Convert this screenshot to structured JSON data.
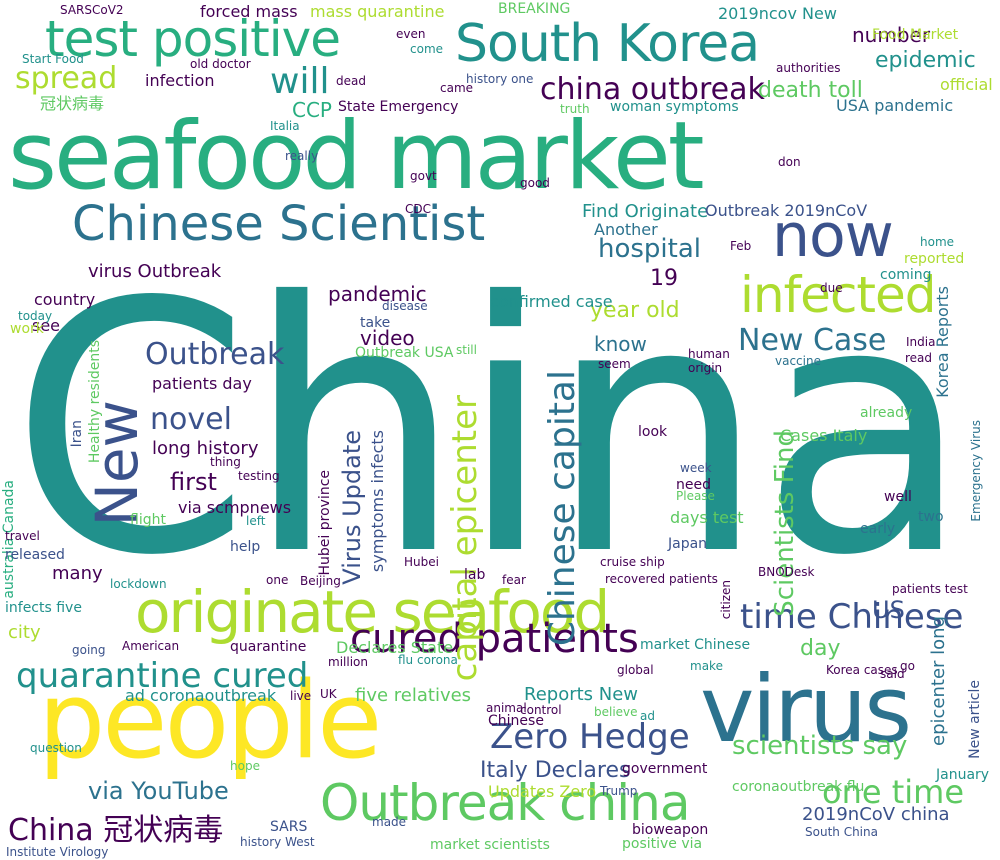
{
  "palette": {
    "dark_purple": "#440154",
    "indigo": "#3b528b",
    "blue": "#2c728e",
    "teal": "#21918c",
    "green": "#28ae80",
    "lime": "#5ec962",
    "yellow_green": "#addc30",
    "yellow": "#fde725"
  },
  "words": [
    {
      "text": "China",
      "color": "teal",
      "weight": 1
    },
    {
      "text": "seafood market",
      "color": "green",
      "weight": 2
    },
    {
      "text": "virus",
      "color": "blue",
      "weight": 3
    },
    {
      "text": "people",
      "color": "yellow",
      "weight": 3
    },
    {
      "text": "originate seafood",
      "color": "yellow_green",
      "weight": 4
    },
    {
      "text": "South Korea",
      "color": "teal",
      "weight": 4
    },
    {
      "text": "test positive",
      "color": "green",
      "weight": 4
    },
    {
      "text": "Outbreak china",
      "color": "lime",
      "weight": 4
    },
    {
      "text": "Chinese Scientist",
      "color": "blue",
      "weight": 4
    },
    {
      "text": "now",
      "color": "indigo",
      "weight": 4
    },
    {
      "text": "infected",
      "color": "yellow_green",
      "weight": 5
    },
    {
      "text": "cured patients",
      "color": "dark_purple",
      "weight": 5
    },
    {
      "text": "quarantine cured",
      "color": "teal",
      "weight": 5
    },
    {
      "text": "New",
      "color": "indigo",
      "weight": 5
    },
    {
      "text": "china outbreak",
      "color": "dark_purple",
      "weight": 5
    },
    {
      "text": "Zero Hedge",
      "color": "indigo",
      "weight": 5
    },
    {
      "text": "capital epicenter",
      "color": "yellow_green",
      "weight": 5
    },
    {
      "text": "Chinese capital",
      "color": "blue",
      "weight": 5
    },
    {
      "text": "time Chinese",
      "color": "indigo",
      "weight": 5
    },
    {
      "text": "one time",
      "color": "lime",
      "weight": 5
    },
    {
      "text": "China 冠状病毒",
      "color": "dark_purple",
      "weight": 5
    },
    {
      "text": "Find Originate",
      "color": "teal",
      "weight": 6
    },
    {
      "text": "will",
      "color": "teal",
      "weight": 6
    },
    {
      "text": "spread",
      "color": "yellow_green",
      "weight": 6
    },
    {
      "text": "epidemic",
      "color": "teal",
      "weight": 6
    },
    {
      "text": "death toll",
      "color": "lime",
      "weight": 6
    },
    {
      "text": "hospital",
      "color": "blue",
      "weight": 6
    },
    {
      "text": "Outbreak",
      "color": "indigo",
      "weight": 6
    },
    {
      "text": "novel",
      "color": "indigo",
      "weight": 6
    },
    {
      "text": "first",
      "color": "dark_purple",
      "weight": 6
    },
    {
      "text": "Virus Update",
      "color": "indigo",
      "weight": 6
    },
    {
      "text": "New Case",
      "color": "blue",
      "weight": 6
    },
    {
      "text": "Scientists Find",
      "color": "lime",
      "weight": 6
    },
    {
      "text": "scientists say",
      "color": "lime",
      "weight": 6
    },
    {
      "text": "Italy Declares",
      "color": "indigo",
      "weight": 6
    },
    {
      "text": "via YouTube",
      "color": "blue",
      "weight": 6
    },
    {
      "text": "Outbreak 2019nCoV",
      "color": "indigo",
      "weight": 7
    },
    {
      "text": "pandemic",
      "color": "dark_purple",
      "weight": 7
    },
    {
      "text": "video",
      "color": "dark_purple",
      "weight": 7
    },
    {
      "text": "know",
      "color": "blue",
      "weight": 7
    },
    {
      "text": "year old",
      "color": "yellow_green",
      "weight": 7
    },
    {
      "text": "number",
      "color": "dark_purple",
      "weight": 7
    },
    {
      "text": "CCP",
      "color": "green",
      "weight": 7
    },
    {
      "text": "State Emergency",
      "color": "dark_purple",
      "weight": 7
    },
    {
      "text": "long history",
      "color": "dark_purple",
      "weight": 7
    },
    {
      "text": "patients day",
      "color": "dark_purple",
      "weight": 7
    },
    {
      "text": "virus Outbreak",
      "color": "dark_purple",
      "weight": 7
    },
    {
      "text": "confirmed case",
      "color": "teal",
      "weight": 7
    },
    {
      "text": "Reports New",
      "color": "teal",
      "weight": 7
    },
    {
      "text": "five relatives",
      "color": "lime",
      "weight": 7
    },
    {
      "text": "ad coronaoutbreak",
      "color": "teal",
      "weight": 7
    },
    {
      "text": "Updates Zero",
      "color": "yellow_green",
      "weight": 7
    },
    {
      "text": "coronaoutbreak flu",
      "color": "lime",
      "weight": 7
    },
    {
      "text": "2019nCoV china",
      "color": "indigo",
      "weight": 7
    },
    {
      "text": "Another",
      "color": "blue",
      "weight": 7
    },
    {
      "text": "USA pandemic",
      "color": "blue",
      "weight": 7
    },
    {
      "text": "epicenter long",
      "color": "blue",
      "weight": 7
    },
    {
      "text": "Korea Reports",
      "color": "blue",
      "weight": 7
    },
    {
      "text": "Cases Italy",
      "color": "lime",
      "weight": 7
    },
    {
      "text": "days test",
      "color": "lime",
      "weight": 7
    },
    {
      "text": "Japan",
      "color": "indigo",
      "weight": 7
    },
    {
      "text": "Declares State",
      "color": "lime",
      "weight": 7
    },
    {
      "text": "via scmpnews",
      "color": "dark_purple",
      "weight": 7
    },
    {
      "text": "symptoms infects",
      "color": "indigo",
      "weight": 7
    },
    {
      "text": "Hubei province",
      "color": "dark_purple",
      "weight": 7
    },
    {
      "text": "Outbreak USA",
      "color": "lime",
      "weight": 7
    },
    {
      "text": "Chinese",
      "color": "dark_purple",
      "weight": 7
    },
    {
      "text": "government",
      "color": "dark_purple",
      "weight": 7
    },
    {
      "text": "Food Market",
      "color": "yellow_green",
      "weight": 7
    },
    {
      "text": "infection",
      "color": "dark_purple",
      "weight": 7
    },
    {
      "text": "forced mass",
      "color": "dark_purple",
      "weight": 7
    },
    {
      "text": "2019ncov New",
      "color": "teal",
      "weight": 7
    },
    {
      "text": "mass quarantine",
      "color": "yellow_green",
      "weight": 7
    },
    {
      "text": "SARSCoV2",
      "color": "dark_purple",
      "weight": 7
    },
    {
      "text": "woman symptoms",
      "color": "teal",
      "weight": 7
    },
    {
      "text": "US",
      "color": "indigo",
      "weight": 7
    },
    {
      "text": "day",
      "color": "lime",
      "weight": 7
    },
    {
      "text": "many",
      "color": "dark_purple",
      "weight": 7
    },
    {
      "text": "city",
      "color": "yellow_green",
      "weight": 7
    },
    {
      "text": "lab",
      "color": "dark_purple",
      "weight": 7
    },
    {
      "text": "19",
      "color": "dark_purple",
      "weight": 7
    },
    {
      "text": "see",
      "color": "dark_purple",
      "weight": 7
    },
    {
      "text": "country",
      "color": "dark_purple",
      "weight": 7
    },
    {
      "text": "Healthy residents",
      "color": "lime",
      "weight": 7
    },
    {
      "text": "australia Canada",
      "color": "green",
      "weight": 8
    },
    {
      "text": "Iran",
      "color": "indigo",
      "weight": 8
    },
    {
      "text": "recovered patients",
      "color": "dark_purple",
      "weight": 8
    },
    {
      "text": "history one",
      "color": "indigo",
      "weight": 8
    },
    {
      "text": "flight",
      "color": "lime",
      "weight": 8
    },
    {
      "text": "help",
      "color": "indigo",
      "weight": 8
    },
    {
      "text": "released",
      "color": "indigo",
      "weight": 8
    },
    {
      "text": "lockdown",
      "color": "teal",
      "weight": 8
    },
    {
      "text": "infects five",
      "color": "teal",
      "weight": 8
    },
    {
      "text": "quarantine",
      "color": "dark_purple",
      "weight": 8
    },
    {
      "text": "American",
      "color": "dark_purple",
      "weight": 8
    },
    {
      "text": "million",
      "color": "dark_purple",
      "weight": 8
    },
    {
      "text": "flu corona",
      "color": "teal",
      "weight": 8
    },
    {
      "text": "going",
      "color": "indigo",
      "weight": 8
    },
    {
      "text": "market Chinese",
      "color": "teal",
      "weight": 8
    },
    {
      "text": "global",
      "color": "dark_purple",
      "weight": 8
    },
    {
      "text": "make",
      "color": "teal",
      "weight": 8
    },
    {
      "text": "Trump",
      "color": "indigo",
      "weight": 8
    },
    {
      "text": "bioweapon",
      "color": "dark_purple",
      "weight": 8
    },
    {
      "text": "positive via",
      "color": "lime",
      "weight": 8
    },
    {
      "text": "market scientists",
      "color": "lime",
      "weight": 8
    },
    {
      "text": "SARS",
      "color": "indigo",
      "weight": 8
    },
    {
      "text": "history West",
      "color": "indigo",
      "weight": 8
    },
    {
      "text": "Institute Virology",
      "color": "indigo",
      "weight": 8
    },
    {
      "text": "South China",
      "color": "indigo",
      "weight": 8
    },
    {
      "text": "January",
      "color": "teal",
      "weight": 8
    },
    {
      "text": "New article",
      "color": "indigo",
      "weight": 8
    },
    {
      "text": "patients test",
      "color": "dark_purple",
      "weight": 8
    },
    {
      "text": "cruise ship",
      "color": "dark_purple",
      "weight": 8
    },
    {
      "text": "vaccine",
      "color": "blue",
      "weight": 8
    },
    {
      "text": "coming",
      "color": "teal",
      "weight": 8
    },
    {
      "text": "reported",
      "color": "yellow_green",
      "weight": 8
    },
    {
      "text": "Emergency Virus",
      "color": "blue",
      "weight": 8
    },
    {
      "text": "official",
      "color": "yellow_green",
      "weight": 8
    },
    {
      "text": "authorities",
      "color": "dark_purple",
      "weight": 8
    },
    {
      "text": "BREAKING",
      "color": "lime",
      "weight": 8
    },
    {
      "text": "Start Food",
      "color": "teal",
      "weight": 8
    },
    {
      "text": "old doctor",
      "color": "dark_purple",
      "weight": 8
    },
    {
      "text": "冠状病毒",
      "color": "lime",
      "weight": 8
    },
    {
      "text": "take",
      "color": "indigo",
      "weight": 8
    },
    {
      "text": "disease",
      "color": "indigo",
      "weight": 8
    },
    {
      "text": "CDC",
      "color": "dark_purple",
      "weight": 8
    },
    {
      "text": "good",
      "color": "dark_purple",
      "weight": 8
    },
    {
      "text": "really",
      "color": "indigo",
      "weight": 8
    },
    {
      "text": "govt",
      "color": "dark_purple",
      "weight": 8
    },
    {
      "text": "Feb",
      "color": "dark_purple",
      "weight": 8
    },
    {
      "text": "well",
      "color": "dark_purple",
      "weight": 8
    },
    {
      "text": "two",
      "color": "blue",
      "weight": 8
    },
    {
      "text": "already",
      "color": "lime",
      "weight": 8
    },
    {
      "text": "early",
      "color": "blue",
      "weight": 8
    },
    {
      "text": "need",
      "color": "dark_purple",
      "weight": 8
    },
    {
      "text": "week",
      "color": "indigo",
      "weight": 8
    },
    {
      "text": "Please",
      "color": "lime",
      "weight": 8
    },
    {
      "text": "seem",
      "color": "dark_purple",
      "weight": 8
    },
    {
      "text": "still",
      "color": "lime",
      "weight": 8
    },
    {
      "text": "look",
      "color": "dark_purple",
      "weight": 8
    },
    {
      "text": "UK",
      "color": "dark_purple",
      "weight": 8
    },
    {
      "text": "live",
      "color": "dark_purple",
      "weight": 8
    },
    {
      "text": "control",
      "color": "dark_purple",
      "weight": 8
    },
    {
      "text": "believe",
      "color": "lime",
      "weight": 8
    },
    {
      "text": "animal",
      "color": "dark_purple",
      "weight": 8
    },
    {
      "text": "hope",
      "color": "lime",
      "weight": 8
    },
    {
      "text": "made",
      "color": "indigo",
      "weight": 8
    },
    {
      "text": "thing",
      "color": "dark_purple",
      "weight": 8
    },
    {
      "text": "testing",
      "color": "dark_purple",
      "weight": 8
    },
    {
      "text": "left",
      "color": "teal",
      "weight": 8
    },
    {
      "text": "even",
      "color": "dark_purple",
      "weight": 8
    },
    {
      "text": "come",
      "color": "teal",
      "weight": 8
    },
    {
      "text": "dead",
      "color": "dark_purple",
      "weight": 8
    },
    {
      "text": "came",
      "color": "dark_purple",
      "weight": 8
    },
    {
      "text": "truth",
      "color": "lime",
      "weight": 8
    },
    {
      "text": "ad",
      "color": "teal",
      "weight": 8
    },
    {
      "text": "question",
      "color": "teal",
      "weight": 8
    },
    {
      "text": "work",
      "color": "yellow_green",
      "weight": 8
    },
    {
      "text": "today",
      "color": "teal",
      "weight": 8
    },
    {
      "text": "travel",
      "color": "dark_purple",
      "weight": 8
    },
    {
      "text": "Italia",
      "color": "teal",
      "weight": 8
    },
    {
      "text": "due",
      "color": "dark_purple",
      "weight": 8
    },
    {
      "text": "human",
      "color": "dark_purple",
      "weight": 8
    },
    {
      "text": "origin",
      "color": "dark_purple",
      "weight": 8
    },
    {
      "text": "said",
      "color": "dark_purple",
      "weight": 8
    },
    {
      "text": "go",
      "color": "dark_purple",
      "weight": 8
    },
    {
      "text": "read",
      "color": "dark_purple",
      "weight": 8
    },
    {
      "text": "home",
      "color": "teal",
      "weight": 8
    },
    {
      "text": "don",
      "color": "dark_purple",
      "weight": 8
    },
    {
      "text": "Hubei",
      "color": "dark_purple",
      "weight": 8
    },
    {
      "text": "one",
      "color": "dark_purple",
      "weight": 8
    },
    {
      "text": "citizen",
      "color": "dark_purple",
      "weight": 8
    },
    {
      "text": "fear",
      "color": "dark_purple",
      "weight": 8
    },
    {
      "text": "India",
      "color": "dark_purple",
      "weight": 8
    },
    {
      "text": "BNODesk",
      "color": "dark_purple",
      "weight": 8
    },
    {
      "text": "Korea cases",
      "color": "dark_purple",
      "weight": 8
    },
    {
      "text": "Beijing",
      "color": "dark_purple",
      "weight": 8
    }
  ]
}
